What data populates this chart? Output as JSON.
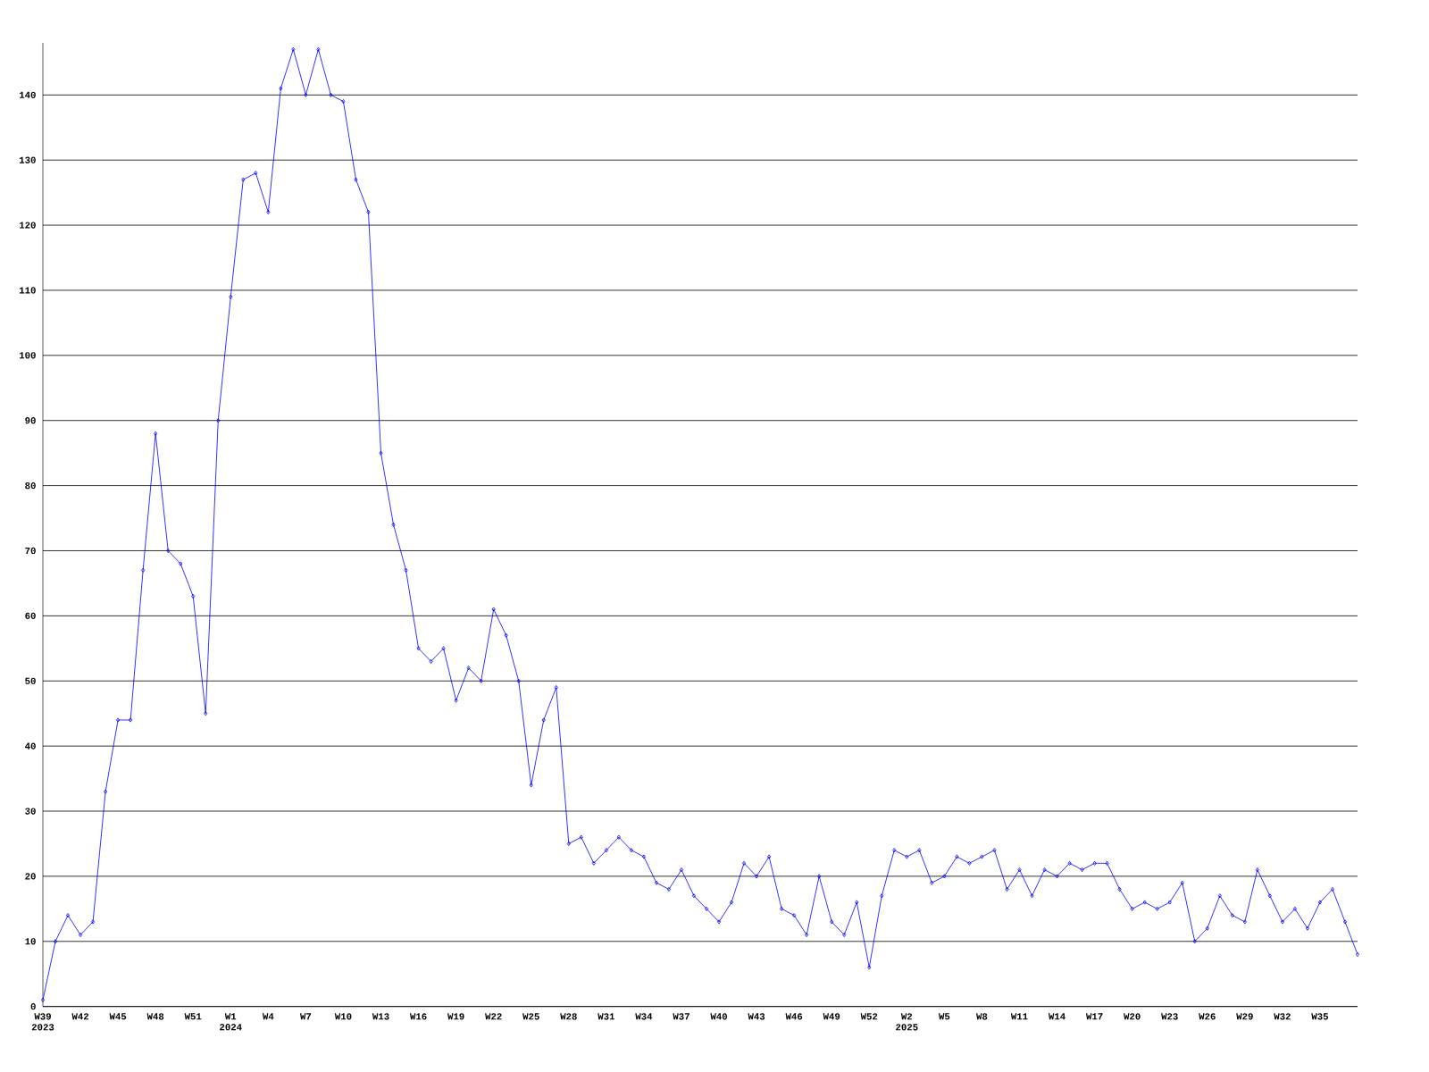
{
  "chart_data": {
    "type": "line",
    "categories": [
      "W39 2023",
      null,
      null,
      "W42",
      null,
      null,
      "W45",
      null,
      null,
      "W48",
      null,
      null,
      "W51",
      null,
      null,
      "W1 2024",
      null,
      null,
      "W4",
      null,
      null,
      "W7",
      null,
      null,
      "W10",
      null,
      null,
      "W13",
      null,
      null,
      "W16",
      null,
      null,
      "W19",
      null,
      null,
      "W22",
      null,
      null,
      "W25",
      null,
      null,
      "W28",
      null,
      null,
      "W31",
      null,
      null,
      "W34",
      null,
      null,
      "W37",
      null,
      null,
      "W40",
      null,
      null,
      "W43",
      null,
      null,
      "W46",
      null,
      null,
      "W49",
      null,
      null,
      "W52",
      null,
      null,
      "W2 2025",
      null,
      null,
      "W5",
      null,
      null,
      "W8",
      null,
      null,
      "W11",
      null,
      null,
      "W14",
      null,
      null,
      "W17",
      null,
      null,
      "W20",
      null,
      null,
      "W23",
      null,
      null,
      "W26",
      null,
      null,
      "W29",
      null,
      null,
      "W32",
      null,
      null,
      "W35",
      null,
      null,
      null
    ],
    "values": [
      1,
      10,
      14,
      11,
      13,
      33,
      44,
      44,
      67,
      88,
      70,
      68,
      63,
      45,
      90,
      109,
      127,
      128,
      122,
      141,
      147,
      140,
      147,
      140,
      139,
      127,
      122,
      85,
      74,
      67,
      55,
      53,
      55,
      47,
      52,
      50,
      61,
      57,
      50,
      34,
      44,
      49,
      25,
      26,
      22,
      24,
      26,
      24,
      23,
      19,
      18,
      21,
      17,
      15,
      13,
      16,
      22,
      20,
      23,
      15,
      14,
      11,
      20,
      13,
      11,
      16,
      6,
      17,
      24,
      23,
      24,
      19,
      20,
      23,
      22,
      23,
      24,
      18,
      21,
      17,
      21,
      20,
      22,
      21,
      22,
      22,
      18,
      15,
      16,
      15,
      16,
      19,
      10,
      12,
      17,
      14,
      13,
      21,
      17,
      13,
      15,
      12,
      16,
      18,
      13,
      8
    ],
    "color": "#0000ff",
    "marker": "diamond",
    "grid": "y",
    "ylim": [
      0,
      148
    ],
    "yticks": [
      0,
      10,
      20,
      30,
      40,
      50,
      60,
      70,
      80,
      90,
      100,
      110,
      120,
      130,
      140
    ]
  }
}
